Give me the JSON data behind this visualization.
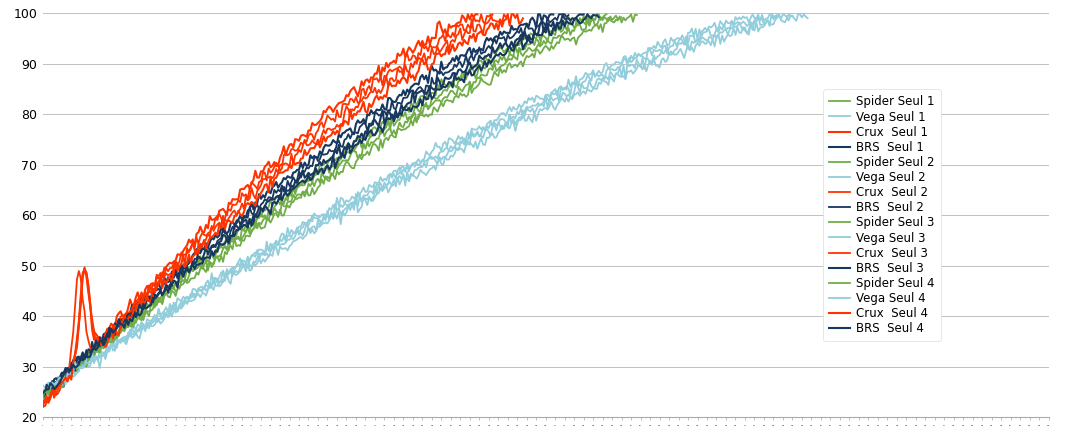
{
  "series": [
    {
      "label": "Spider Seul 1",
      "color": "#70AD47",
      "stove": "Spider",
      "run": 1,
      "lw": 1.3
    },
    {
      "label": "Vega Seul 1",
      "color": "#92CDDC",
      "stove": "Vega",
      "run": 1,
      "lw": 1.3
    },
    {
      "label": "Crux  Seul 1",
      "color": "#FF3300",
      "stove": "Crux",
      "run": 1,
      "lw": 1.5
    },
    {
      "label": "BRS  Seul 1",
      "color": "#17375E",
      "stove": "BRS",
      "run": 1,
      "lw": 1.5
    },
    {
      "label": "Spider Seul 2",
      "color": "#70AD47",
      "stove": "Spider",
      "run": 2,
      "lw": 1.3
    },
    {
      "label": "Vega Seul 2",
      "color": "#92CDDC",
      "stove": "Vega",
      "run": 2,
      "lw": 1.3
    },
    {
      "label": "Crux  Seul 2",
      "color": "#FF3300",
      "stove": "Crux",
      "run": 2,
      "lw": 1.3
    },
    {
      "label": "BRS  Seul 2",
      "color": "#17375E",
      "stove": "BRS",
      "run": 2,
      "lw": 1.3
    },
    {
      "label": "Spider Seul 3",
      "color": "#70AD47",
      "stove": "Spider",
      "run": 3,
      "lw": 1.3
    },
    {
      "label": "Vega Seul 3",
      "color": "#92CDDC",
      "stove": "Vega",
      "run": 3,
      "lw": 1.3
    },
    {
      "label": "Crux  Seul 3",
      "color": "#FF3300",
      "stove": "Crux",
      "run": 3,
      "lw": 1.3
    },
    {
      "label": "BRS  Seul 3",
      "color": "#17375E",
      "stove": "BRS",
      "run": 3,
      "lw": 1.5
    },
    {
      "label": "Spider Seul 4",
      "color": "#70AD47",
      "stove": "Spider",
      "run": 4,
      "lw": 1.3
    },
    {
      "label": "Vega Seul 4",
      "color": "#92CDDC",
      "stove": "Vega",
      "run": 4,
      "lw": 1.3
    },
    {
      "label": "Crux  Seul 4",
      "color": "#FF3300",
      "stove": "Crux",
      "run": 4,
      "lw": 1.5
    },
    {
      "label": "BRS  Seul 4",
      "color": "#17375E",
      "stove": "BRS",
      "run": 4,
      "lw": 1.5
    }
  ],
  "stove_params": {
    "Crux": {
      "t_end": 230,
      "t_start": 22.5,
      "t_boil": 99.5,
      "rate": 1.0
    },
    "BRS": {
      "t_end": 270,
      "t_start": 24.5,
      "t_boil": 99.5,
      "rate": 1.0
    },
    "Spider": {
      "t_end": 290,
      "t_start": 24.0,
      "t_boil": 99.5,
      "rate": 1.0
    },
    "Vega": {
      "t_end": 380,
      "t_start": 25.0,
      "t_boil": 99.5,
      "rate": 1.0
    }
  },
  "run_var": [
    0,
    8,
    16,
    24
  ],
  "ylim": [
    20,
    100
  ],
  "yticks": [
    20,
    30,
    40,
    50,
    60,
    70,
    80,
    90,
    100
  ],
  "xlim": [
    0,
    530
  ],
  "bg_color": "#FFFFFF",
  "grid_color": "#C0C0C0",
  "legend_fontsize": 8.5
}
